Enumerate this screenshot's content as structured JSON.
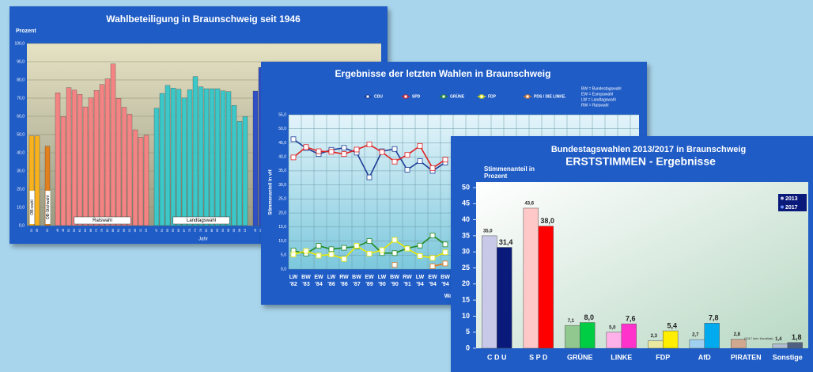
{
  "chart_data": [
    {
      "type": "bar",
      "title": "Wahlbeteiligung in Braunschweig seit 1946",
      "ylabel": "Prozent",
      "xlabel": "Jahr",
      "ylim": [
        0,
        100
      ],
      "yticks": [
        {
          "value": 0,
          "label": "0,0"
        },
        {
          "value": 10,
          "label": "10,0"
        },
        {
          "value": 20,
          "label": "20,0"
        },
        {
          "value": 30,
          "label": "30,0"
        },
        {
          "value": 40,
          "label": "40,0"
        },
        {
          "value": 50,
          "label": "50,0"
        },
        {
          "value": 60,
          "label": "60,0"
        },
        {
          "value": 70,
          "label": "70,0"
        },
        {
          "value": 80,
          "label": "80,0"
        },
        {
          "value": 90,
          "label": "90,0"
        },
        {
          "value": 100,
          "label": "100,0"
        }
      ],
      "grid": true,
      "groups": [
        {
          "name": "OB-wahl",
          "color": "#f7b21e",
          "categories": [
            "01",
            "06"
          ],
          "values": [
            49.3,
            49.3
          ]
        },
        {
          "name": "OB-Stichwahl",
          "color": "#e2801e",
          "categories": [
            "01"
          ],
          "values": [
            43.6
          ]
        },
        {
          "name": "Ratswahl",
          "color": "#f48484",
          "categories": [
            "46",
            "48",
            "52",
            "56",
            "61",
            "64",
            "68",
            "72",
            "76",
            "81",
            "86",
            "91",
            "96",
            "01",
            "06",
            "11",
            "16"
          ],
          "values": [
            72.9,
            59.8,
            75.8,
            74.4,
            72.1,
            65.2,
            70.2,
            74.2,
            77.5,
            80.6,
            88.8,
            69.9,
            65.0,
            61.1,
            52.6,
            48.5,
            49.6
          ]
        },
        {
          "name": "Landtagswahl",
          "color": "#3cc8c8",
          "categories": [
            "47",
            "51",
            "55",
            "59",
            "63",
            "67",
            "70",
            "74",
            "78",
            "82",
            "86",
            "90",
            "94",
            "98",
            "03",
            "08",
            "13"
          ],
          "values": [
            64.5,
            72.6,
            77.0,
            75.5,
            74.9,
            70.1,
            74.6,
            81.9,
            76.2,
            75.2,
            75.2,
            75.2,
            74.0,
            73.6,
            66.0,
            57.2,
            59.9
          ]
        },
        {
          "name": null,
          "color": "#3050c8",
          "categories": [
            "49",
            "53",
            "57"
          ],
          "values": [
            73.9,
            86.9,
            88.0
          ]
        }
      ]
    },
    {
      "type": "line",
      "title": "Ergebnisse der letzten Wahlen in Braunschweig",
      "ylabel": "Stimmenanteil in vH",
      "xlabel": "Wahl",
      "notes": [
        "BW = Bundestagswahl",
        "EW = Europawahl",
        "LW = Landtagswahl",
        "RW = Ratswahl"
      ],
      "ylim": [
        0,
        55
      ],
      "yticks": [
        {
          "value": 0,
          "label": "0,0"
        },
        {
          "value": 5,
          "label": "5,0"
        },
        {
          "value": 10,
          "label": "10,0"
        },
        {
          "value": 15,
          "label": "15,0"
        },
        {
          "value": 20,
          "label": "20,0"
        },
        {
          "value": 25,
          "label": "25,0"
        },
        {
          "value": 30,
          "label": "30,0"
        },
        {
          "value": 35,
          "label": "35,0"
        },
        {
          "value": 40,
          "label": "40,0"
        },
        {
          "value": 45,
          "label": "45,0"
        },
        {
          "value": 50,
          "label": "50,0"
        },
        {
          "value": 55,
          "label": "55,0"
        }
      ],
      "grid": true,
      "categories": [
        "LW '82",
        "BW '83",
        "EW '84",
        "LW '86",
        "RW '86",
        "BW '87",
        "EW '89",
        "LW '90",
        "BW '90",
        "RW '91",
        "LW '94",
        "EW '94",
        "BW '94"
      ],
      "series": [
        {
          "name": "CDU",
          "color": "#1e3c96",
          "values": [
            46.3,
            43.1,
            41.0,
            42.5,
            43.2,
            41.5,
            32.7,
            42.0,
            42.8,
            35.4,
            38.5,
            35.0,
            38.0
          ]
        },
        {
          "name": "SPD",
          "color": "#e02020",
          "values": [
            39.8,
            43.5,
            42.0,
            41.8,
            41.0,
            42.6,
            44.4,
            41.7,
            38.3,
            40.7,
            43.9,
            36.0,
            39.0
          ]
        },
        {
          "name": "GRÜNE",
          "color": "#208a20",
          "values": [
            6.6,
            5.5,
            8.3,
            7.1,
            7.6,
            8.0,
            10.0,
            5.7,
            5.7,
            7.4,
            8.4,
            12.0,
            8.8
          ]
        },
        {
          "name": "FDP",
          "color": "#e8e800",
          "values": [
            5.2,
            6.5,
            4.8,
            5.2,
            3.6,
            8.3,
            5.5,
            6.8,
            10.4,
            7.3,
            4.7,
            4.0,
            6.0
          ]
        },
        {
          "name": "PDS / DIE LINKE.",
          "color": "#e07820",
          "values": [
            null,
            null,
            null,
            null,
            null,
            null,
            null,
            null,
            1.5,
            null,
            null,
            1.0,
            2.0
          ]
        }
      ]
    },
    {
      "type": "bar",
      "title": "Bundestagswahlen 2013/2017 in Braunschweig",
      "subtitle": "ERSTSTIMMEN - Ergebnisse",
      "ylabel": "Stimmenanteil in Prozent",
      "annotation": "(2017 kein Kandidat)",
      "ylim": [
        0,
        50
      ],
      "yticks": [
        0,
        5,
        10,
        15,
        20,
        25,
        30,
        35,
        40,
        45,
        50
      ],
      "categories": [
        "C D U",
        "S P D",
        "GRÜNE",
        "LINKE",
        "FDP",
        "AfD",
        "PIRATEN",
        "Sonstige"
      ],
      "series": [
        {
          "name": "2013",
          "color": "#c8c8e8",
          "colors": [
            "#c8c8e8",
            "#ffc8c8",
            "#90c890",
            "#ffb0e8",
            "#e8e8a0",
            "#a0d0f0",
            "#d0a890",
            "#b0c0d0"
          ],
          "values": [
            35.0,
            43.6,
            7.1,
            5.0,
            2.3,
            2.7,
            2.8,
            1.4
          ],
          "value_labels": [
            "35,0",
            "43,6",
            "7,1",
            "5,0",
            "2,3",
            "2,7",
            "2,8",
            "1,4"
          ]
        },
        {
          "name": "2017",
          "color": "#0a1a7a",
          "colors": [
            "#0a1a7a",
            "#ff0000",
            "#00cc44",
            "#ff33cc",
            "#ffee00",
            "#00aaee",
            "#c8a080",
            "#506080"
          ],
          "values": [
            31.4,
            38.0,
            8.0,
            7.6,
            5.4,
            7.8,
            null,
            1.8
          ],
          "value_labels": [
            "31,4",
            "38,0",
            "8,0",
            "7,6",
            "5,4",
            "7,8",
            null,
            "1,8"
          ]
        }
      ]
    }
  ]
}
